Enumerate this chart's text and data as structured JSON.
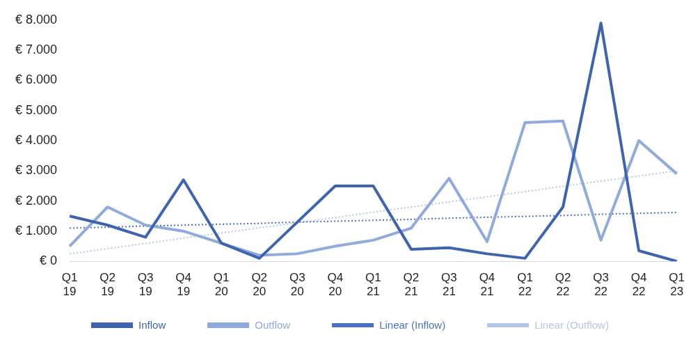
{
  "chart_data": {
    "type": "line",
    "categories": [
      "Q1 19",
      "Q2 19",
      "Q3 19",
      "Q4 19",
      "Q1 20",
      "Q2 20",
      "Q3 20",
      "Q4 20",
      "Q1 21",
      "Q2 21",
      "Q3 21",
      "Q4 21",
      "Q1 22",
      "Q2 22",
      "Q3 22",
      "Q4 22",
      "Q1 23"
    ],
    "series": [
      {
        "name": "Inflow",
        "color": "#3c64b1",
        "line_style": "solid",
        "values": [
          1500,
          1200,
          800,
          2700,
          600,
          100,
          1300,
          2500,
          2500,
          400,
          450,
          250,
          100,
          1800,
          7900,
          350,
          0
        ]
      },
      {
        "name": "Outflow",
        "color": "#8faadc",
        "line_style": "solid",
        "values": [
          500,
          1800,
          1200,
          1000,
          600,
          200,
          250,
          500,
          700,
          1100,
          2750,
          650,
          4600,
          4650,
          700,
          4000,
          2900
        ]
      },
      {
        "name": "Linear (Inflow)",
        "color": "#4a72c4",
        "line_style": "dotted",
        "values": [
          1100,
          1130,
          1170,
          1200,
          1230,
          1260,
          1300,
          1330,
          1360,
          1390,
          1430,
          1460,
          1490,
          1520,
          1560,
          1590,
          1620
        ]
      },
      {
        "name": "Linear (Outflow)",
        "color": "#b4c7e7",
        "line_style": "dotted",
        "values": [
          250,
          420,
          590,
          770,
          940,
          1110,
          1280,
          1450,
          1630,
          1800,
          1970,
          2140,
          2310,
          2490,
          2660,
          2830,
          3000
        ]
      }
    ],
    "ylim": [
      0,
      8000
    ],
    "yticks": [
      {
        "value": 0,
        "label": "€ 0"
      },
      {
        "value": 1000,
        "label": "€ 1.000"
      },
      {
        "value": 2000,
        "label": "€ 2.000"
      },
      {
        "value": 3000,
        "label": "€ 3.000"
      },
      {
        "value": 4000,
        "label": "€ 4.000"
      },
      {
        "value": 5000,
        "label": "€ 5.000"
      },
      {
        "value": 6000,
        "label": "€ 6.000"
      },
      {
        "value": 7000,
        "label": "€ 7.000"
      },
      {
        "value": 8000,
        "label": "€ 8.000"
      }
    ],
    "grid": false,
    "legend": "bottom",
    "marker": "none"
  }
}
